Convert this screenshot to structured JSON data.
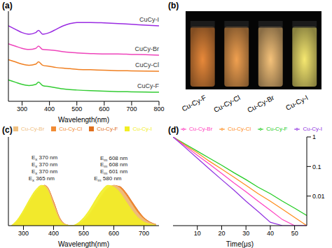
{
  "chart_data": [
    {
      "type": "line",
      "title": "(a)",
      "xlabel": "Wavelength(nm)",
      "tick_labels": "x",
      "x": [
        250,
        275,
        300,
        325,
        350,
        360,
        375,
        400,
        425,
        450,
        475,
        500,
        550,
        600,
        650,
        700,
        750,
        800
      ],
      "xlim": [
        250,
        800
      ],
      "xticks": [
        300,
        400,
        500,
        600,
        700,
        800
      ],
      "ylim": [
        0,
        4
      ],
      "series": [
        {
          "name": "CuCy-I",
          "color": "#9a2be2",
          "values": [
            3.35,
            3.2,
            3.05,
            2.98,
            3.05,
            3.15,
            2.98,
            3.05,
            3.2,
            3.35,
            3.45,
            3.5,
            3.5,
            3.48,
            3.45,
            3.42,
            3.38,
            3.35
          ]
        },
        {
          "name": "CuCy-Br",
          "color": "#ee44bb",
          "values": [
            2.55,
            2.45,
            2.35,
            2.3,
            2.35,
            2.45,
            2.3,
            2.28,
            2.25,
            2.2,
            2.17,
            2.15,
            2.12,
            2.1,
            2.1,
            2.08,
            2.07,
            2.05
          ]
        },
        {
          "name": "CuCy-Cl",
          "color": "#f07f20",
          "values": [
            1.85,
            1.75,
            1.65,
            1.6,
            1.65,
            1.75,
            1.6,
            1.55,
            1.5,
            1.47,
            1.45,
            1.42,
            1.4,
            1.38,
            1.36,
            1.35,
            1.34,
            1.33
          ]
        },
        {
          "name": "CuCy-F",
          "color": "#33cc33",
          "values": [
            0.95,
            0.85,
            0.75,
            0.7,
            0.75,
            0.85,
            0.7,
            0.65,
            0.6,
            0.55,
            0.52,
            0.5,
            0.47,
            0.45,
            0.43,
            0.42,
            0.41,
            0.4
          ]
        }
      ]
    },
    {
      "type": "image",
      "title": "(b)",
      "categories": [
        "Cu-Cy-F",
        "Cu-Cy-Cl",
        "Cu-Cy-Br",
        "Cu-Cy-I"
      ],
      "colors": [
        "#e8893a",
        "#f0a050",
        "#f5c27a",
        "#f6e870"
      ]
    },
    {
      "type": "area",
      "title": "(c)",
      "xlabel": "Wavelength(nm)",
      "tick_labels": "x",
      "x": [
        260,
        280,
        300,
        320,
        340,
        360,
        370,
        380,
        400,
        420,
        440,
        460,
        480,
        500,
        520,
        540,
        560,
        580,
        600,
        620,
        640,
        660,
        680,
        700,
        720,
        740
      ],
      "xlim": [
        250,
        750
      ],
      "xticks": [
        300,
        400,
        500,
        600,
        700
      ],
      "ylim": [
        0,
        2.2
      ],
      "series": [
        {
          "name": "Cu-Cy-F",
          "color": "#e0701e",
          "ex_label": "Ex 370 nm",
          "em_label": "Em 608 nm",
          "values": [
            0,
            0.1,
            0.3,
            0.55,
            0.8,
            0.95,
            1,
            0.95,
            0.6,
            0.2,
            0.03,
            0,
            0.03,
            0.1,
            0.25,
            0.45,
            0.68,
            0.88,
            0.99,
            0.97,
            0.82,
            0.6,
            0.38,
            0.2,
            0.09,
            0.03
          ]
        },
        {
          "name": "Cu-Cy-Cl",
          "color": "#f28c34",
          "ex_label": "Ex 370 nm",
          "em_label": "Em 608 nm",
          "values": [
            0,
            0.1,
            0.3,
            0.55,
            0.8,
            0.96,
            1,
            0.94,
            0.58,
            0.18,
            0.03,
            0,
            0.03,
            0.11,
            0.26,
            0.47,
            0.7,
            0.9,
            1,
            0.96,
            0.8,
            0.57,
            0.36,
            0.19,
            0.08,
            0.03
          ]
        },
        {
          "name": "Cu-Cy-Br",
          "color": "#f0c080",
          "ex_label": "Ex 370 nm",
          "em_label": "Em 601 nm",
          "values": [
            0,
            0.12,
            0.32,
            0.58,
            0.82,
            0.97,
            1,
            0.93,
            0.55,
            0.17,
            0.03,
            0,
            0.04,
            0.13,
            0.3,
            0.52,
            0.75,
            0.93,
            1,
            0.93,
            0.75,
            0.52,
            0.31,
            0.16,
            0.07,
            0.02
          ]
        },
        {
          "name": "Cu-Cy-I",
          "color": "#f2ee24",
          "ex_label": "Ex 365 nm",
          "em_label": "Em 580 nm",
          "values": [
            0,
            0.15,
            0.38,
            0.65,
            0.88,
            1,
            0.98,
            0.88,
            0.48,
            0.14,
            0.02,
            0,
            0.06,
            0.2,
            0.4,
            0.65,
            0.87,
            1,
            0.96,
            0.82,
            0.6,
            0.38,
            0.2,
            0.09,
            0.04,
            0.01
          ]
        }
      ]
    },
    {
      "type": "line",
      "title": "(d)",
      "xlabel": "Time(μs)",
      "log": "y",
      "x": [
        0,
        5,
        10,
        15,
        20,
        25,
        30,
        35,
        40,
        45,
        50,
        55
      ],
      "xlim": [
        0,
        55
      ],
      "xticks": [
        10,
        20,
        30,
        40,
        50
      ],
      "ylim": [
        0.001,
        1
      ],
      "yticks": [
        0.01,
        0.1,
        1
      ],
      "series": [
        {
          "name": "Cu-Cy-F",
          "color": "#22cc22",
          "values": [
            1,
            0.57,
            0.33,
            0.19,
            0.11,
            0.062,
            0.036,
            0.02,
            0.012,
            0.0067,
            0.0039,
            0.0022
          ]
        },
        {
          "name": "Cu-Cy-Cl",
          "color": "#ff8c1a",
          "values": [
            1,
            0.53,
            0.29,
            0.15,
            0.082,
            0.044,
            0.023,
            0.012,
            0.0067,
            0.0036,
            0.0019,
            0.001
          ]
        },
        {
          "name": "Cu-Cy-Br",
          "color": "#ff40c0",
          "values": [
            1,
            0.49,
            0.24,
            0.12,
            0.058,
            0.028,
            0.014,
            0.0067,
            0.0033,
            0.0016,
            0.001,
            0.001
          ]
        },
        {
          "name": "Cu-Cy-I",
          "color": "#9030e0",
          "values": [
            1,
            0.44,
            0.19,
            0.082,
            0.036,
            0.016,
            0.0067,
            0.003,
            0.0013,
            0.001,
            0.001,
            0.001
          ]
        }
      ]
    }
  ]
}
